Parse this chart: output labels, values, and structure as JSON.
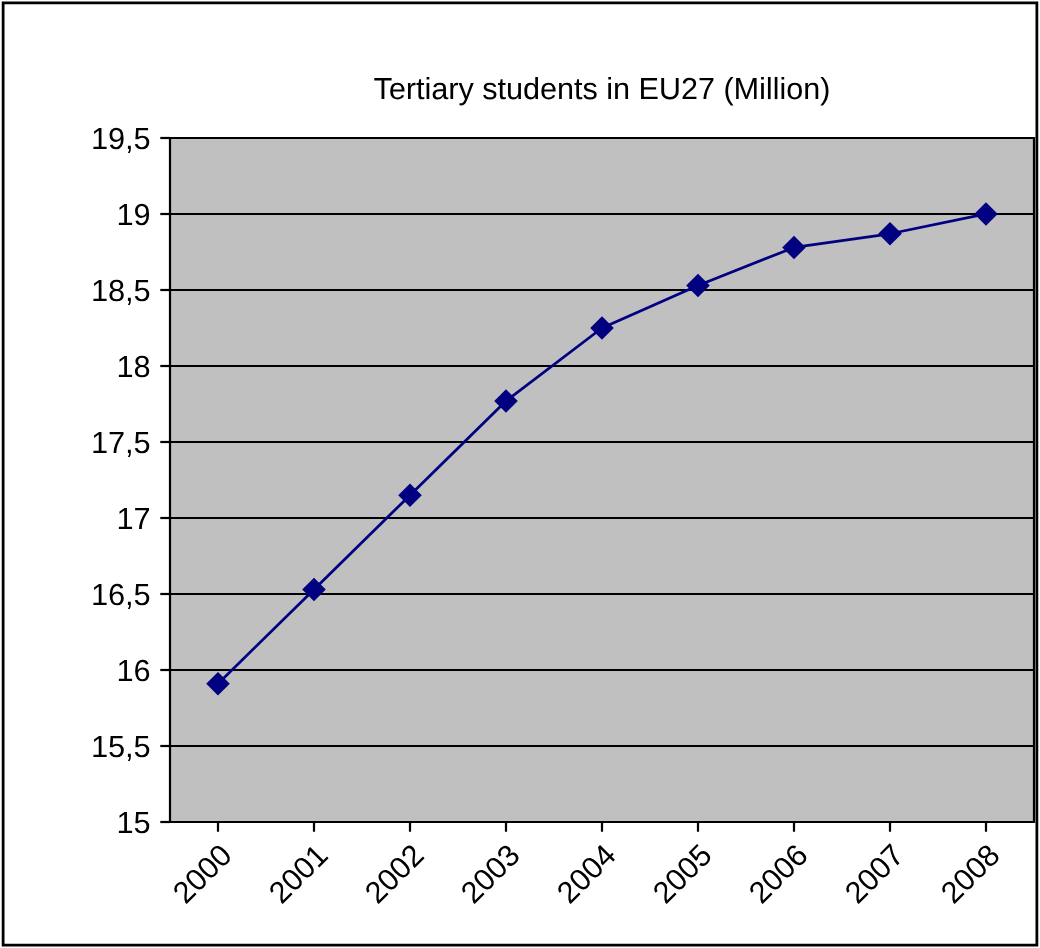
{
  "chart_data": {
    "type": "line",
    "title": "Tertiary students in EU27 (Million)",
    "categories": [
      "2000",
      "2001",
      "2002",
      "2003",
      "2004",
      "2005",
      "2006",
      "2007",
      "2008"
    ],
    "series": [
      {
        "color": "#000080",
        "values": [
          15.91,
          16.53,
          17.15,
          17.77,
          18.25,
          18.53,
          18.78,
          18.87,
          19.0
        ]
      }
    ],
    "ylim": [
      15,
      19.5
    ],
    "yticks": [
      15,
      {
        "value": 15.5,
        "label": "15,5"
      },
      16,
      {
        "value": 16.5,
        "label": "16,5"
      },
      17,
      {
        "value": 17.5,
        "label": "17,5"
      },
      18,
      {
        "value": 18.5,
        "label": "18,5"
      },
      19,
      {
        "value": 19.5,
        "label": "19,5"
      }
    ],
    "grid": "y",
    "marker": "diamond",
    "line_style": "solid"
  }
}
